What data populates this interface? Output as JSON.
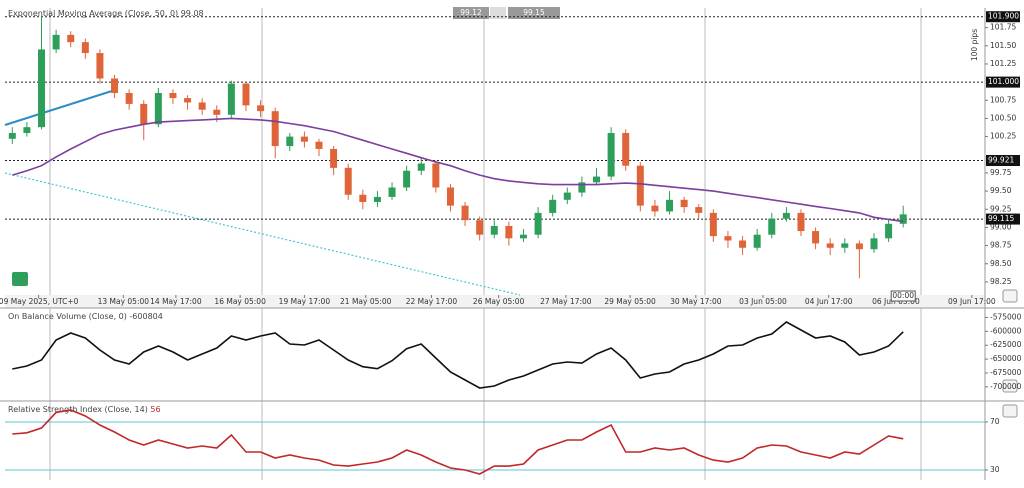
{
  "chart_data": [
    {
      "type": "candlestick",
      "title": "Exponential Moving Average (Close, 50, 0)",
      "bid": "99.12",
      "ask": "99.15",
      "y_label": "100 pips",
      "time_marker": "00:00",
      "up_color": "#2e9e5b",
      "down_color": "#e0643a",
      "xlim": [
        -0.5,
        66.6
      ],
      "xticks": [
        {
          "value": 1.8,
          "label": "09 May 2025, UTC+0"
        },
        {
          "value": 7.6,
          "label": "13 May 05:00"
        },
        {
          "value": 11.2,
          "label": "14 May 17:00"
        },
        {
          "value": 15.6,
          "label": "16 May 05:00"
        },
        {
          "value": 20.0,
          "label": "19 May 17:00"
        },
        {
          "value": 24.2,
          "label": "21 May 05:00"
        },
        {
          "value": 28.7,
          "label": "22 May 17:00"
        },
        {
          "value": 33.3,
          "label": "26 May 05:00"
        },
        {
          "value": 37.9,
          "label": "27 May 17:00"
        },
        {
          "value": 42.3,
          "label": "29 May 05:00"
        },
        {
          "value": 46.8,
          "label": "30 May 17:00"
        },
        {
          "value": 51.4,
          "label": "03 Jun 05:00"
        },
        {
          "value": 55.9,
          "label": "04 Jun 17:00"
        },
        {
          "value": 60.5,
          "label": "06 Jun 05:00"
        },
        {
          "value": 65.7,
          "label": "09 Jun 17:00"
        }
      ],
      "ylim": [
        98.07,
        102.02
      ],
      "yticks": [
        101.75,
        {
          "value": 101.5,
          "label": "101.50"
        },
        101.25,
        100.75,
        {
          "value": 100.5,
          "label": "100.50"
        },
        100.25,
        99.75,
        {
          "value": 99.5,
          "label": "99.50"
        },
        99.25,
        {
          "value": 99,
          "label": "99.00"
        },
        98.75,
        {
          "value": 98.5,
          "label": "98.50"
        },
        98.25
      ],
      "levels": [
        {
          "value": 101.9,
          "label": "101.900"
        },
        {
          "value": 101,
          "label": "101.000"
        },
        {
          "value": 99.921,
          "label": "99.921"
        },
        {
          "value": 99.115,
          "label": "99.115"
        }
      ],
      "open": [
        100.22,
        100.3,
        100.38,
        101.45,
        101.65,
        101.55,
        101.4,
        101.05,
        100.85,
        100.7,
        100.42,
        100.85,
        100.78,
        100.72,
        100.62,
        100.55,
        100.98,
        100.68,
        100.6,
        100.12,
        100.25,
        100.18,
        100.08,
        99.82,
        99.45,
        99.35,
        99.42,
        99.55,
        99.78,
        99.88,
        99.55,
        99.3,
        99.1,
        98.9,
        99.02,
        98.85,
        98.9,
        99.2,
        99.38,
        99.48,
        99.62,
        99.7,
        100.3,
        99.85,
        99.3,
        99.22,
        99.38,
        99.28,
        99.2,
        98.88,
        98.82,
        98.72,
        98.9,
        99.12,
        99.2,
        98.95,
        98.78,
        98.72,
        98.78,
        98.7,
        98.85,
        99.05
      ],
      "high": [
        100.38,
        100.45,
        101.9,
        101.72,
        101.7,
        101.6,
        101.45,
        101.1,
        100.9,
        100.75,
        100.92,
        100.9,
        100.82,
        100.78,
        100.68,
        101.02,
        101.0,
        100.75,
        100.65,
        100.3,
        100.32,
        100.22,
        100.12,
        99.88,
        99.52,
        99.5,
        99.62,
        99.85,
        99.95,
        99.92,
        99.6,
        99.35,
        99.15,
        99.1,
        99.08,
        98.98,
        99.28,
        99.45,
        99.55,
        99.7,
        99.82,
        100.38,
        100.35,
        99.9,
        99.38,
        99.5,
        99.42,
        99.32,
        99.25,
        98.95,
        98.88,
        98.98,
        99.2,
        99.28,
        99.25,
        99.0,
        98.85,
        98.85,
        98.82,
        98.92,
        99.12,
        99.3
      ],
      "low": [
        100.15,
        100.25,
        100.35,
        101.4,
        101.48,
        101.32,
        100.98,
        100.78,
        100.62,
        100.2,
        100.38,
        100.7,
        100.62,
        100.55,
        100.45,
        100.5,
        100.6,
        100.52,
        99.95,
        100.05,
        100.1,
        99.98,
        99.72,
        99.38,
        99.25,
        99.28,
        99.38,
        99.5,
        99.72,
        99.48,
        99.22,
        99.02,
        98.82,
        98.85,
        98.75,
        98.8,
        98.85,
        99.15,
        99.32,
        99.42,
        99.58,
        99.65,
        99.78,
        99.22,
        99.15,
        99.18,
        99.2,
        99.12,
        98.8,
        98.72,
        98.62,
        98.68,
        98.85,
        99.08,
        98.88,
        98.7,
        98.62,
        98.65,
        98.3,
        98.65,
        98.8,
        99.0
      ],
      "close": [
        100.3,
        100.38,
        101.45,
        101.65,
        101.55,
        101.4,
        101.05,
        100.85,
        100.7,
        100.42,
        100.85,
        100.78,
        100.72,
        100.62,
        100.55,
        100.98,
        100.68,
        100.6,
        100.12,
        100.25,
        100.18,
        100.08,
        99.82,
        99.45,
        99.35,
        99.42,
        99.55,
        99.78,
        99.88,
        99.55,
        99.3,
        99.1,
        98.9,
        99.02,
        98.85,
        98.9,
        99.2,
        99.38,
        99.48,
        99.62,
        99.7,
        100.3,
        99.85,
        99.3,
        99.22,
        99.38,
        99.28,
        99.2,
        98.88,
        98.82,
        98.72,
        98.9,
        99.12,
        99.2,
        98.95,
        98.78,
        98.72,
        98.78,
        98.7,
        98.85,
        99.05,
        99.18
      ],
      "series": [
        {
          "color": "#7b3f9e",
          "values": [
            99.72,
            99.78,
            99.85,
            99.97,
            100.08,
            100.18,
            100.28,
            100.34,
            100.38,
            100.42,
            100.45,
            100.46,
            100.47,
            100.48,
            100.49,
            100.5,
            100.49,
            100.48,
            100.46,
            100.43,
            100.4,
            100.36,
            100.32,
            100.26,
            100.2,
            100.14,
            100.08,
            100.02,
            99.96,
            99.9,
            99.85,
            99.78,
            99.72,
            99.67,
            99.64,
            99.62,
            99.6,
            99.59,
            99.59,
            99.59,
            99.59,
            99.6,
            99.61,
            99.6,
            99.58,
            99.56,
            99.54,
            99.52,
            99.5,
            99.47,
            99.44,
            99.41,
            99.38,
            99.35,
            99.32,
            99.29,
            99.26,
            99.23,
            99.2,
            99.14,
            99.11,
            99.08
          ]
        }
      ]
    },
    {
      "type": "line",
      "title": "On Balance Volume (Close, 0)",
      "xlim": [
        -0.5,
        66.6
      ],
      "ylim": [
        -720000,
        -558000
      ],
      "yticks": [
        -575000,
        -600000,
        -625000,
        -650000,
        -675000,
        -700000
      ],
      "series": [
        {
          "color": "#111111",
          "values": [
            -667800,
            -662400,
            -651600,
            -615600,
            -603000,
            -612000,
            -633600,
            -651600,
            -658800,
            -637200,
            -626400,
            -637200,
            -651600,
            -640800,
            -630000,
            -608400,
            -615600,
            -608400,
            -603000,
            -622800,
            -624600,
            -615600,
            -633600,
            -651600,
            -663600,
            -667200,
            -652800,
            -631200,
            -622800,
            -648000,
            -673200,
            -687600,
            -702000,
            -698400,
            -687600,
            -680400,
            -669600,
            -658800,
            -655200,
            -657000,
            -640800,
            -630000,
            -651600,
            -684000,
            -676800,
            -673200,
            -658800,
            -651600,
            -640800,
            -626400,
            -624600,
            -612000,
            -604800,
            -583200,
            -597600,
            -612000,
            -608400,
            -619200,
            -642600,
            -637200,
            -626400,
            -600804
          ]
        }
      ]
    },
    {
      "type": "line",
      "title": "Relative Strength Index (Close, 14)",
      "xlim": [
        -0.5,
        66.6
      ],
      "ylim": [
        21.7,
        85.8
      ],
      "yticks": [
        70,
        30
      ],
      "tick_color": "#5cc8d0",
      "series": [
        {
          "color": "#c0282a",
          "values": [
            60,
            61,
            65,
            78,
            80,
            75,
            67.5,
            61.7,
            55,
            50.8,
            55,
            51.7,
            48.3,
            50,
            48.3,
            59.2,
            45,
            45,
            40,
            42.5,
            40,
            38.3,
            34.2,
            33.3,
            35,
            36.7,
            40,
            46.7,
            42.5,
            36.7,
            31.7,
            30,
            26.7,
            33.3,
            33.3,
            35,
            46.7,
            50.8,
            55,
            55,
            61.7,
            67.5,
            45,
            45,
            48.3,
            46.7,
            48.3,
            42.5,
            38.3,
            36.7,
            40,
            48.3,
            50.8,
            50,
            45,
            42.5,
            40,
            45,
            43.3,
            50.8,
            58.3,
            56
          ]
        }
      ]
    }
  ]
}
